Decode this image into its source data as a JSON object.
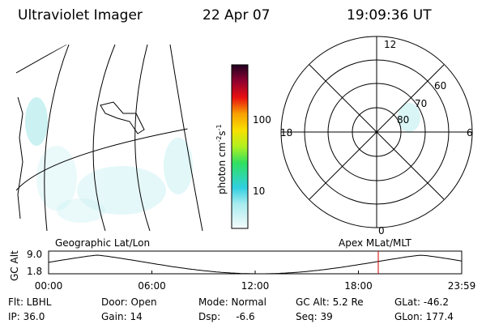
{
  "header": {
    "instrument": "Ultraviolet Imager",
    "date": "22 Apr 07",
    "time": "19:09:36 UT"
  },
  "colorbar": {
    "label": {
      "main": "photon cm",
      "exp1": "-2",
      "unit2": "s",
      "exp2": "-1"
    },
    "ticks": [
      "100",
      "10"
    ]
  },
  "polar": {
    "labels": {
      "top": "12",
      "bottom": "0",
      "left": "18",
      "right": "6"
    },
    "rings": [
      "60",
      "70",
      "80"
    ]
  },
  "timeline": {
    "left_title": "Geographic Lat/Lon",
    "right_title": "Apex MLat/MLT",
    "axis_label": "GC Alt",
    "y_labels": [
      "9.0",
      "1.8"
    ],
    "x_labels": [
      "00:00",
      "06:00",
      "12:00",
      "18:00",
      "23:59"
    ]
  },
  "footer": {
    "rows": [
      [
        "Flt: LBHL",
        "Door: Open",
        "Mode: Normal",
        "GC Alt: 5.2 Re",
        "GLat: -46.2"
      ],
      [
        "IP: 36.0",
        "Gain: 14",
        "Dsp:     -6.6",
        "Seq: 39",
        "GLon: 177.4"
      ]
    ]
  }
}
